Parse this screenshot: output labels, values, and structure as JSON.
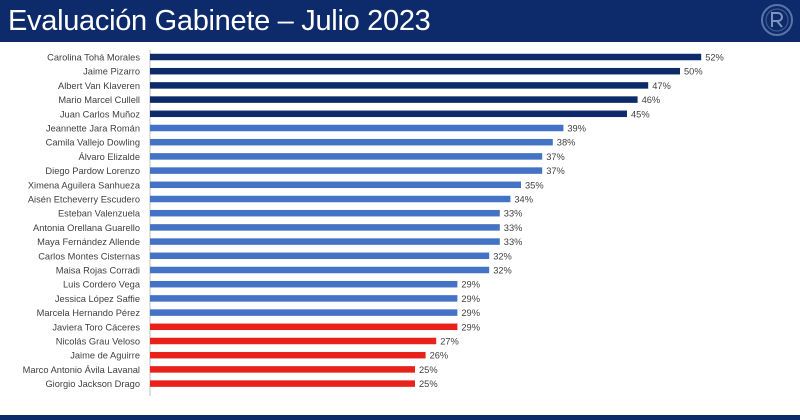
{
  "header": {
    "title": "Evaluación Gabinete – Julio 2023",
    "background": "#0d2a6b"
  },
  "logo": {
    "icon": "circular-brand-logo-icon"
  },
  "colors": {
    "dark_navy": "#0d2a6b",
    "medium_blue": "#4472c4",
    "red": "#e8221a"
  },
  "chart_data": {
    "type": "bar",
    "orientation": "horizontal",
    "title": "",
    "xlabel": "",
    "ylabel": "",
    "xlim": [
      0,
      60
    ],
    "grid": false,
    "value_suffix": "%",
    "categories": [
      "Carolina Tohá Morales",
      "Jaime Pizarro",
      "Albert Van Klaveren",
      "Mario Marcel Cullell",
      "Juan Carlos Muñoz",
      "Jeannette Jara Román",
      "Camila Vallejo Dowling",
      "Álvaro Elizalde",
      "Diego Pardow Lorenzo",
      "Ximena Aguilera Sanhueza",
      "Aisén Etcheverry Escudero",
      "Esteban Valenzuela",
      "Antonia Orellana Guarello",
      "Maya Fernández Allende",
      "Carlos Montes Cisternas",
      "Maisa Rojas Corradi",
      "Luis Cordero Vega",
      "Jessica López Saffie",
      "Marcela Hernando Pérez",
      "Javiera Toro Cáceres",
      "Nicolás Grau Veloso",
      "Jaime de Aguirre",
      "Marco Antonio Ávila Lavanal",
      "Giorgio Jackson Drago"
    ],
    "values": [
      52,
      50,
      47,
      46,
      45,
      39,
      38,
      37,
      37,
      35,
      34,
      33,
      33,
      33,
      32,
      32,
      29,
      29,
      29,
      29,
      27,
      26,
      25,
      25
    ],
    "labels": [
      "52%",
      "50%",
      "47%",
      "46%",
      "45%",
      "39%",
      "38%",
      "37%",
      "37%",
      "35%",
      "34%",
      "33%",
      "33%",
      "33%",
      "32%",
      "32%",
      "29%",
      "29%",
      "29%",
      "29%",
      "27%",
      "26%",
      "25%",
      "25%"
    ],
    "bar_colors": [
      "#0d2a6b",
      "#0d2a6b",
      "#0d2a6b",
      "#0d2a6b",
      "#0d2a6b",
      "#4472c4",
      "#4472c4",
      "#4472c4",
      "#4472c4",
      "#4472c4",
      "#4472c4",
      "#4472c4",
      "#4472c4",
      "#4472c4",
      "#4472c4",
      "#4472c4",
      "#4472c4",
      "#4472c4",
      "#4472c4",
      "#e8221a",
      "#e8221a",
      "#e8221a",
      "#e8221a",
      "#e8221a"
    ]
  }
}
